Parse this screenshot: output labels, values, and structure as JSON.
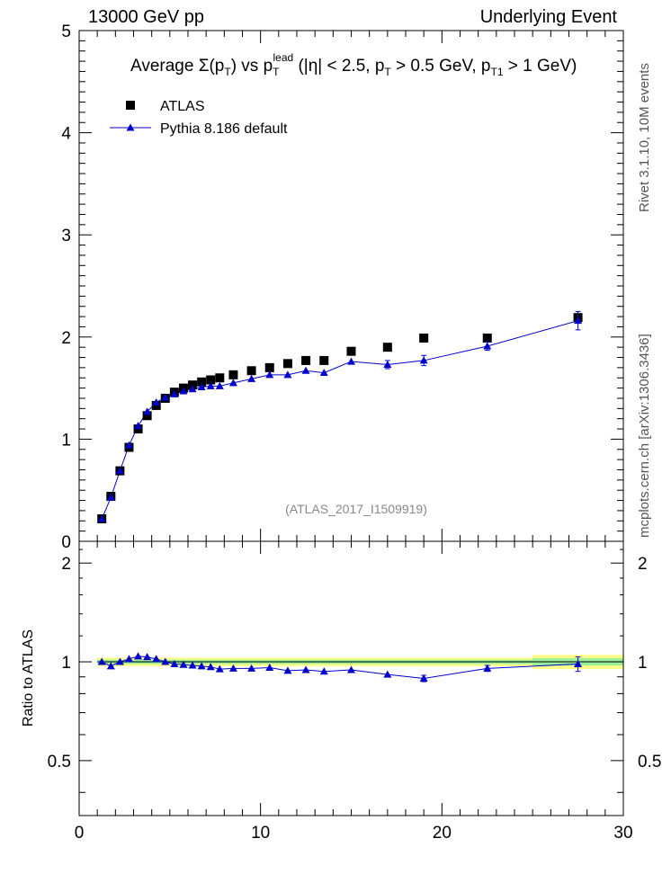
{
  "header": {
    "left": "13000 GeV pp",
    "right": "Underlying Event"
  },
  "side_labels": {
    "rivet": "Rivet 3.1.10,  10M events",
    "mcplots": "mcplots.cern.ch [arXiv:1306.3436]"
  },
  "chart_data": [
    {
      "type": "scatter",
      "title": "Average Σ(p_T) vs p_T^lead (|η| < 2.5, p_T > 0.5 GeV, p_T1 > 1 GeV)",
      "title_parts": {
        "prefix": "Average ",
        "sigma": "Σ(p",
        "t1_sub": "T",
        "mid1": ") vs p",
        "lead_sub": "T",
        "lead_sup": "lead",
        "mid2": " (|η| < 2.5, p",
        "t2_sub": "T",
        "mid3": " > 0.5 GeV, p",
        "t3_sub": "T1",
        "suffix": " > 1 GeV)"
      },
      "watermark": "(ATLAS_2017_I1509919)",
      "xlim": [
        0,
        30
      ],
      "ylim": [
        0,
        5
      ],
      "yticks": [
        0,
        1,
        2,
        3,
        4,
        5
      ],
      "ytick_labels": [
        "0",
        "1",
        "2",
        "3",
        "4",
        "5"
      ],
      "legend_position": "top-left",
      "series": [
        {
          "name": "ATLAS",
          "marker": "square",
          "color": "#000000",
          "points": [
            {
              "x": 1.25,
              "y": 0.22
            },
            {
              "x": 1.75,
              "y": 0.44
            },
            {
              "x": 2.25,
              "y": 0.69
            },
            {
              "x": 2.75,
              "y": 0.92
            },
            {
              "x": 3.25,
              "y": 1.1
            },
            {
              "x": 3.75,
              "y": 1.23
            },
            {
              "x": 4.25,
              "y": 1.33
            },
            {
              "x": 4.75,
              "y": 1.4
            },
            {
              "x": 5.25,
              "y": 1.46
            },
            {
              "x": 5.75,
              "y": 1.5
            },
            {
              "x": 6.25,
              "y": 1.53
            },
            {
              "x": 6.75,
              "y": 1.56
            },
            {
              "x": 7.25,
              "y": 1.58
            },
            {
              "x": 7.75,
              "y": 1.6
            },
            {
              "x": 8.5,
              "y": 1.63
            },
            {
              "x": 9.5,
              "y": 1.67
            },
            {
              "x": 10.5,
              "y": 1.7
            },
            {
              "x": 11.5,
              "y": 1.74
            },
            {
              "x": 12.5,
              "y": 1.77
            },
            {
              "x": 13.5,
              "y": 1.77
            },
            {
              "x": 15.0,
              "y": 1.86
            },
            {
              "x": 17.0,
              "y": 1.9
            },
            {
              "x": 19.0,
              "y": 1.99
            },
            {
              "x": 22.5,
              "y": 1.99
            },
            {
              "x": 27.5,
              "y": 2.19,
              "err": 0.06
            }
          ]
        },
        {
          "name": "Pythia 8.186 default",
          "marker": "triangle",
          "color": "#0000cc",
          "points": [
            {
              "x": 1.25,
              "y": 0.22
            },
            {
              "x": 1.75,
              "y": 0.43
            },
            {
              "x": 2.25,
              "y": 0.69
            },
            {
              "x": 2.75,
              "y": 0.94
            },
            {
              "x": 3.25,
              "y": 1.13
            },
            {
              "x": 3.75,
              "y": 1.27
            },
            {
              "x": 4.25,
              "y": 1.36
            },
            {
              "x": 4.75,
              "y": 1.41
            },
            {
              "x": 5.25,
              "y": 1.44
            },
            {
              "x": 5.75,
              "y": 1.47
            },
            {
              "x": 6.25,
              "y": 1.49
            },
            {
              "x": 6.75,
              "y": 1.51
            },
            {
              "x": 7.25,
              "y": 1.52
            },
            {
              "x": 7.75,
              "y": 1.52
            },
            {
              "x": 8.5,
              "y": 1.55
            },
            {
              "x": 9.5,
              "y": 1.59
            },
            {
              "x": 10.5,
              "y": 1.63
            },
            {
              "x": 11.5,
              "y": 1.63
            },
            {
              "x": 12.5,
              "y": 1.67
            },
            {
              "x": 13.5,
              "y": 1.65
            },
            {
              "x": 15.0,
              "y": 1.76
            },
            {
              "x": 17.0,
              "y": 1.73,
              "err": 0.04
            },
            {
              "x": 19.0,
              "y": 1.77,
              "err": 0.05
            },
            {
              "x": 22.5,
              "y": 1.91,
              "err": 0.04
            },
            {
              "x": 27.5,
              "y": 2.16,
              "err": 0.09
            }
          ]
        }
      ]
    },
    {
      "type": "line",
      "ylabel": "Ratio to ATLAS",
      "xlim": [
        0,
        30
      ],
      "ylim": [
        0.34,
        2.33
      ],
      "xticks": [
        0,
        10,
        20,
        30
      ],
      "xtick_labels": [
        "0",
        "10",
        "20",
        "30"
      ],
      "yticks": [
        0.5,
        1,
        2
      ],
      "ytick_labels": [
        "0.5",
        "1",
        "2"
      ],
      "bands": [
        {
          "x0": 1.0,
          "x1": 25.0,
          "lo": 0.97,
          "hi": 1.03,
          "color": "#ffff88"
        },
        {
          "x0": 1.0,
          "x1": 25.0,
          "lo": 0.985,
          "hi": 1.015,
          "color": "#99ee99"
        },
        {
          "x0": 25.0,
          "x1": 30.0,
          "lo": 0.95,
          "hi": 1.05,
          "color": "#ffff88"
        },
        {
          "x0": 25.0,
          "x1": 30.0,
          "lo": 0.975,
          "hi": 1.025,
          "color": "#99ee99"
        }
      ],
      "series": [
        {
          "name": "Pythia 8.186 default",
          "color": "#0000cc",
          "points": [
            {
              "x": 1.25,
              "y": 1.0
            },
            {
              "x": 1.75,
              "y": 0.97
            },
            {
              "x": 2.25,
              "y": 1.0
            },
            {
              "x": 2.75,
              "y": 1.02
            },
            {
              "x": 3.25,
              "y": 1.04
            },
            {
              "x": 3.75,
              "y": 1.035
            },
            {
              "x": 4.25,
              "y": 1.02
            },
            {
              "x": 4.75,
              "y": 1.0
            },
            {
              "x": 5.25,
              "y": 0.985
            },
            {
              "x": 5.75,
              "y": 0.98
            },
            {
              "x": 6.25,
              "y": 0.975
            },
            {
              "x": 6.75,
              "y": 0.97
            },
            {
              "x": 7.25,
              "y": 0.965
            },
            {
              "x": 7.75,
              "y": 0.95
            },
            {
              "x": 8.5,
              "y": 0.955
            },
            {
              "x": 9.5,
              "y": 0.955
            },
            {
              "x": 10.5,
              "y": 0.96
            },
            {
              "x": 11.5,
              "y": 0.94
            },
            {
              "x": 12.5,
              "y": 0.945
            },
            {
              "x": 13.5,
              "y": 0.935
            },
            {
              "x": 15.0,
              "y": 0.945
            },
            {
              "x": 17.0,
              "y": 0.915
            },
            {
              "x": 19.0,
              "y": 0.89,
              "err": 0.02
            },
            {
              "x": 22.5,
              "y": 0.955,
              "err": 0.02
            },
            {
              "x": 27.5,
              "y": 0.985,
              "err": 0.05
            }
          ]
        }
      ]
    }
  ]
}
